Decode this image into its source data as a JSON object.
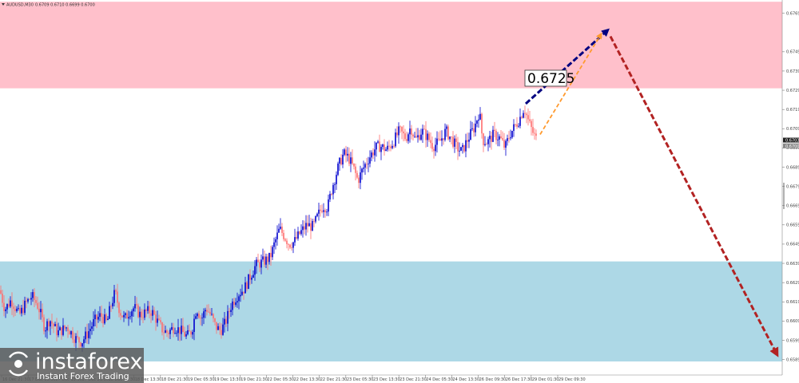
{
  "header": {
    "symbol": "AUDUSD,M30",
    "quote": "0.6709 0.6710 0.6699 0.6700"
  },
  "callout": {
    "label": "0.6725"
  },
  "logo": {
    "brand": "instaforex",
    "tagline": "Instant Forex Trading"
  },
  "colors": {
    "resistance_zone": "#ffc0cb",
    "support_zone": "#add8e6",
    "bull_candle": "#0000cd",
    "bear_candle": "#ff6e6e",
    "arrow_navy": "#000080",
    "arrow_orange": "#ff9a2e",
    "arrow_red": "#b22222"
  },
  "chart_data": {
    "type": "candlestick",
    "ylim": [
      0.6585,
      0.6775
    ],
    "y_ticks": [
      "0.6769",
      "0.6749",
      "0.6739",
      "0.6729",
      "0.6719",
      "0.6709",
      "0.6699",
      "0.6689",
      "0.6679",
      "0.6669",
      "0.6659",
      "0.6649",
      "0.6639",
      "0.6629",
      "0.6619",
      "0.6609",
      "0.6599",
      "0.6589"
    ],
    "x_ticks": [
      "16 Dec 21:30",
      "17 Dec 05:30",
      "17 Dec 13:30",
      "17 Dec 21:30",
      "18 Dec 05:30",
      "18 Dec 13:30",
      "18 Dec 21:30",
      "19 Dec 05:30",
      "19 Dec 13:30",
      "19 Dec 21:30",
      "22 Dec 05:30",
      "22 Dec 13:30",
      "22 Dec 21:30",
      "23 Dec 05:30",
      "23 Dec 13:30",
      "23 Dec 21:30",
      "24 Dec 05:30",
      "24 Dec 13:30",
      "26 Dec 09:30",
      "26 Dec 17:30",
      "29 Dec 01:30",
      "29 Dec 09:30"
    ],
    "price_labels": [
      "0.6703",
      "0.6700"
    ],
    "zones": [
      {
        "name": "resistance",
        "from": 0.673,
        "to": 0.6775
      },
      {
        "name": "support",
        "from": 0.6587,
        "to": 0.664
      }
    ],
    "close_path": [
      [
        0,
        0.6625
      ],
      [
        6,
        0.6615
      ],
      [
        14,
        0.662
      ],
      [
        24,
        0.6612
      ],
      [
        32,
        0.6618
      ],
      [
        40,
        0.6622
      ],
      [
        46,
        0.6618
      ],
      [
        50,
        0.6614
      ],
      [
        56,
        0.6605
      ],
      [
        62,
        0.661
      ],
      [
        72,
        0.6603
      ],
      [
        84,
        0.6606
      ],
      [
        94,
        0.66
      ],
      [
        102,
        0.6598
      ],
      [
        110,
        0.6603
      ],
      [
        118,
        0.6609
      ],
      [
        126,
        0.6612
      ],
      [
        134,
        0.6608
      ],
      [
        138,
        0.6616
      ],
      [
        144,
        0.6624
      ],
      [
        150,
        0.6614
      ],
      [
        156,
        0.661
      ],
      [
        162,
        0.6614
      ],
      [
        168,
        0.6616
      ],
      [
        176,
        0.6612
      ],
      [
        184,
        0.6614
      ],
      [
        190,
        0.6614
      ],
      [
        198,
        0.6608
      ],
      [
        204,
        0.6604
      ],
      [
        210,
        0.6603
      ],
      [
        218,
        0.6606
      ],
      [
        226,
        0.6604
      ],
      [
        234,
        0.6601
      ],
      [
        240,
        0.6604
      ],
      [
        246,
        0.6616
      ],
      [
        252,
        0.661
      ],
      [
        258,
        0.6616
      ],
      [
        264,
        0.6612
      ],
      [
        270,
        0.6606
      ],
      [
        276,
        0.6604
      ],
      [
        282,
        0.6608
      ],
      [
        290,
        0.6618
      ],
      [
        298,
        0.6623
      ],
      [
        306,
        0.6626
      ],
      [
        314,
        0.6633
      ],
      [
        320,
        0.6638
      ],
      [
        330,
        0.664
      ],
      [
        338,
        0.6642
      ],
      [
        344,
        0.665
      ],
      [
        350,
        0.6657
      ],
      [
        356,
        0.6653
      ],
      [
        362,
        0.6649
      ],
      [
        368,
        0.665
      ],
      [
        376,
        0.6655
      ],
      [
        384,
        0.6659
      ],
      [
        392,
        0.6658
      ],
      [
        398,
        0.6664
      ],
      [
        404,
        0.6669
      ],
      [
        410,
        0.6668
      ],
      [
        416,
        0.6679
      ],
      [
        424,
        0.669
      ],
      [
        430,
        0.6696
      ],
      [
        436,
        0.6694
      ],
      [
        442,
        0.6689
      ],
      [
        448,
        0.6682
      ],
      [
        454,
        0.6688
      ],
      [
        462,
        0.6694
      ],
      [
        470,
        0.6699
      ],
      [
        476,
        0.67
      ],
      [
        484,
        0.6698
      ],
      [
        492,
        0.6702
      ],
      [
        500,
        0.6708
      ],
      [
        508,
        0.6704
      ],
      [
        514,
        0.671
      ],
      [
        520,
        0.6703
      ],
      [
        528,
        0.6708
      ],
      [
        536,
        0.6704
      ],
      [
        542,
        0.67
      ],
      [
        550,
        0.6702
      ],
      [
        558,
        0.6708
      ],
      [
        566,
        0.6703
      ],
      [
        572,
        0.6699
      ],
      [
        578,
        0.6697
      ],
      [
        586,
        0.6704
      ],
      [
        594,
        0.671
      ],
      [
        600,
        0.6718
      ],
      [
        604,
        0.6703
      ],
      [
        610,
        0.6702
      ],
      [
        618,
        0.6706
      ],
      [
        626,
        0.6704
      ],
      [
        632,
        0.6699
      ],
      [
        638,
        0.6706
      ],
      [
        644,
        0.671
      ],
      [
        650,
        0.6714
      ],
      [
        656,
        0.672
      ],
      [
        662,
        0.6712
      ],
      [
        668,
        0.6706
      ],
      [
        672,
        0.6703
      ]
    ],
    "forecast": [
      {
        "name": "navy-arrow",
        "from": [
          658,
          0.6722
        ],
        "to": [
          760,
          0.676
        ]
      },
      {
        "name": "orange-arrow",
        "from": [
          676,
          0.6706
        ],
        "to": [
          752,
          0.6758
        ]
      },
      {
        "name": "red-arrow",
        "from": [
          764,
          0.6757
        ],
        "to": [
          972,
          0.6592
        ]
      }
    ]
  }
}
